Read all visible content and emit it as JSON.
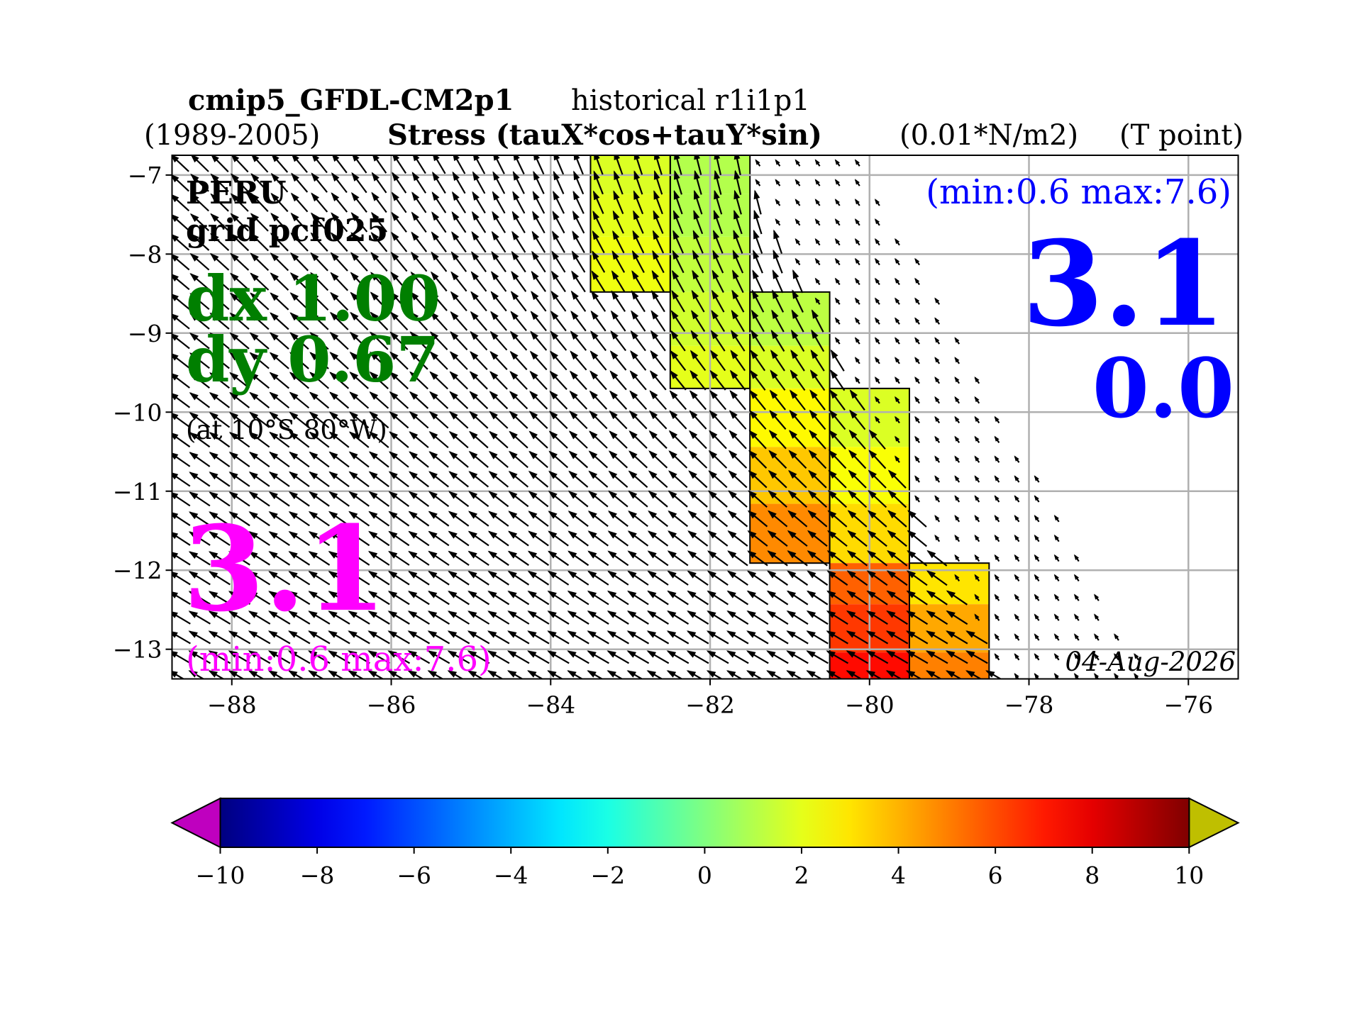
{
  "chart_data": {
    "type": "map",
    "title": {
      "model": "cmip5_GFDL-CM2p1",
      "experiment": "historical r1i1p1",
      "period": "(1989-2005)",
      "variable": "Stress (tauX*cos+tauY*sin)",
      "units": "(0.01*N/m2)",
      "point": "(T point)"
    },
    "annotations": {
      "region": "PERU",
      "grid": "grid pcf025",
      "dx": "dx 1.00",
      "dy": "dy 0.67",
      "location": "(at 10°S 80°W)",
      "left_value": "3.1",
      "left_range": "(min:0.6 max:7.6)",
      "right_range": "(min:0.6 max:7.6)",
      "right_value": "3.1",
      "right_value2": "0.0",
      "date": "04-Aug-2026"
    },
    "xlim": [
      -88.75,
      -75.375
    ],
    "ylim": [
      -13.375,
      -6.75
    ],
    "xticks": [
      {
        "value": -88,
        "label": "−88"
      },
      {
        "value": -86,
        "label": "−86"
      },
      {
        "value": -84,
        "label": "−84"
      },
      {
        "value": -82,
        "label": "−82"
      },
      {
        "value": -80,
        "label": "−80"
      },
      {
        "value": -78,
        "label": "−78"
      },
      {
        "value": -76,
        "label": "−76"
      }
    ],
    "yticks": [
      {
        "value": -7,
        "label": "−7"
      },
      {
        "value": -8,
        "label": "−8"
      },
      {
        "value": -9,
        "label": "−9"
      },
      {
        "value": -10,
        "label": "−10"
      },
      {
        "value": -11,
        "label": "−11"
      },
      {
        "value": -12,
        "label": "−12"
      },
      {
        "value": -13,
        "label": "−13"
      }
    ],
    "grid": true,
    "cells": [
      {
        "lon": [
          -83.5,
          -82.5
        ],
        "lat": [
          -6.75,
          -7.24
        ],
        "value": 1.8
      },
      {
        "lon": [
          -83.5,
          -82.5
        ],
        "lat": [
          -7.24,
          -7.78
        ],
        "value": 2.0
      },
      {
        "lon": [
          -83.5,
          -82.5
        ],
        "lat": [
          -7.78,
          -8.48
        ],
        "value": 2.2
      },
      {
        "lon": [
          -82.5,
          -81.5
        ],
        "lat": [
          -6.75,
          -7.24
        ],
        "value": 1.0
      },
      {
        "lon": [
          -82.5,
          -81.5
        ],
        "lat": [
          -7.24,
          -7.78
        ],
        "value": 1.0
      },
      {
        "lon": [
          -82.5,
          -81.5
        ],
        "lat": [
          -7.78,
          -8.48
        ],
        "value": 1.3
      },
      {
        "lon": [
          -82.5,
          -81.5
        ],
        "lat": [
          -8.48,
          -9.16
        ],
        "value": 1.6
      },
      {
        "lon": [
          -82.5,
          -81.5
        ],
        "lat": [
          -9.16,
          -9.7
        ],
        "value": 2.0
      },
      {
        "lon": [
          -81.5,
          -80.5
        ],
        "lat": [
          -8.48,
          -9.16
        ],
        "value": 1.2
      },
      {
        "lon": [
          -81.5,
          -80.5
        ],
        "lat": [
          -9.16,
          -9.7
        ],
        "value": 1.8
      },
      {
        "lon": [
          -81.5,
          -80.5
        ],
        "lat": [
          -9.7,
          -10.44
        ],
        "value": 2.6
      },
      {
        "lon": [
          -81.5,
          -80.5
        ],
        "lat": [
          -10.44,
          -11.16
        ],
        "value": 3.6
      },
      {
        "lon": [
          -81.5,
          -80.5
        ],
        "lat": [
          -11.16,
          -11.91
        ],
        "value": 4.8
      },
      {
        "lon": [
          -80.5,
          -79.5
        ],
        "lat": [
          -9.7,
          -10.44
        ],
        "value": 1.8
      },
      {
        "lon": [
          -80.5,
          -79.5
        ],
        "lat": [
          -10.44,
          -11.16
        ],
        "value": 2.4
      },
      {
        "lon": [
          -80.5,
          -79.5
        ],
        "lat": [
          -11.16,
          -11.91
        ],
        "value": 3.2
      },
      {
        "lon": [
          -80.5,
          -79.5
        ],
        "lat": [
          -11.91,
          -12.43
        ],
        "value": 5.6
      },
      {
        "lon": [
          -80.5,
          -79.5
        ],
        "lat": [
          -12.43,
          -13.04
        ],
        "value": 6.4
      },
      {
        "lon": [
          -80.5,
          -79.5
        ],
        "lat": [
          -13.04,
          -13.375
        ],
        "value": 7.3
      },
      {
        "lon": [
          -79.5,
          -78.5
        ],
        "lat": [
          -11.91,
          -12.43
        ],
        "value": 3.0
      },
      {
        "lon": [
          -79.5,
          -78.5
        ],
        "lat": [
          -12.43,
          -13.04
        ],
        "value": 4.2
      },
      {
        "lon": [
          -79.5,
          -78.5
        ],
        "lat": [
          -13.04,
          -13.375
        ],
        "value": 5.0
      }
    ],
    "colorbar": {
      "lim": [
        -10,
        10
      ],
      "under_color": "#bf00bf",
      "over_color": "#bfbf00",
      "ticks": [
        {
          "value": -10,
          "label": "−10"
        },
        {
          "value": -8,
          "label": "−8"
        },
        {
          "value": -6,
          "label": "−6"
        },
        {
          "value": -4,
          "label": "−4"
        },
        {
          "value": -2,
          "label": "−2"
        },
        0,
        2,
        4,
        6,
        8,
        10
      ]
    }
  }
}
